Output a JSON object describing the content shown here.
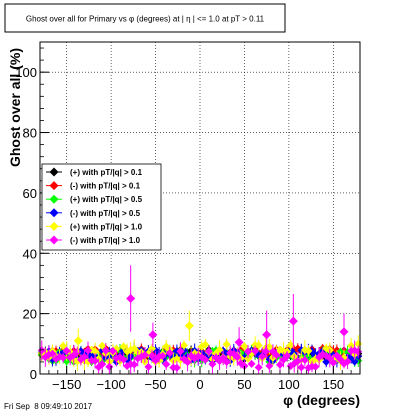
{
  "chart_data": {
    "type": "scatter",
    "title": "Ghost over all for Primary vs φ (degrees) at | η | <= 1.0 at pT > 0.11",
    "xlabel": "φ (degrees)",
    "ylabel": "Ghost over all (%)",
    "xlim": [
      -180,
      180
    ],
    "ylim": [
      0,
      110
    ],
    "x_ticks": [
      -150,
      -100,
      -50,
      0,
      50,
      100,
      150
    ],
    "x_tick_labels": [
      "−150",
      "−100",
      "−50",
      "0",
      "50",
      "100",
      "150"
    ],
    "y_ticks": [
      0,
      20,
      40,
      60,
      80,
      100
    ],
    "y_tick_labels": [
      "0",
      "20",
      "40",
      "60",
      "80",
      "100"
    ],
    "grid": true,
    "legend_position": "middle-left",
    "series": [
      {
        "name": "(+) with pT/|q| > 0.1",
        "color": "#000000",
        "marker": "diamond",
        "baseline": 6.5,
        "spread": 1.5
      },
      {
        "name": "(-) with pT/|q| > 0.1",
        "color": "#ff0000",
        "marker": "diamond",
        "baseline": 7.0,
        "spread": 1.5
      },
      {
        "name": "(+) with pT/|q| > 0.5",
        "color": "#00ff00",
        "marker": "diamond",
        "baseline": 6.0,
        "spread": 2.0
      },
      {
        "name": "(-) with pT/|q| > 0.5",
        "color": "#0000ff",
        "marker": "diamond",
        "baseline": 6.0,
        "spread": 2.0
      },
      {
        "name": "(+) with pT/|q| > 1.0",
        "color": "#ffff00",
        "marker": "diamond",
        "baseline": 7.0,
        "spread": 3.0
      },
      {
        "name": "(-) with pT/|q| > 1.0",
        "color": "#ff00ff",
        "marker": "diamond",
        "baseline": 5.0,
        "spread": 3.0
      }
    ],
    "highlighted_points": [
      {
        "series": 5,
        "x": -78,
        "y": 25,
        "err": 11
      },
      {
        "series": 5,
        "x": -53,
        "y": 13,
        "err": 4
      },
      {
        "series": 5,
        "x": 44,
        "y": 10.5,
        "err": 5
      },
      {
        "series": 5,
        "x": 75,
        "y": 13,
        "err": 8
      },
      {
        "series": 5,
        "x": 105,
        "y": 17.5,
        "err": 9
      },
      {
        "series": 5,
        "x": 162,
        "y": 14,
        "err": 6
      },
      {
        "series": 4,
        "x": -12,
        "y": 16,
        "err": 5
      },
      {
        "series": 4,
        "x": -137,
        "y": 11,
        "err": 4
      }
    ]
  },
  "footer": {
    "timestamp": "Fri Sep  8 09:49:10 2017"
  }
}
